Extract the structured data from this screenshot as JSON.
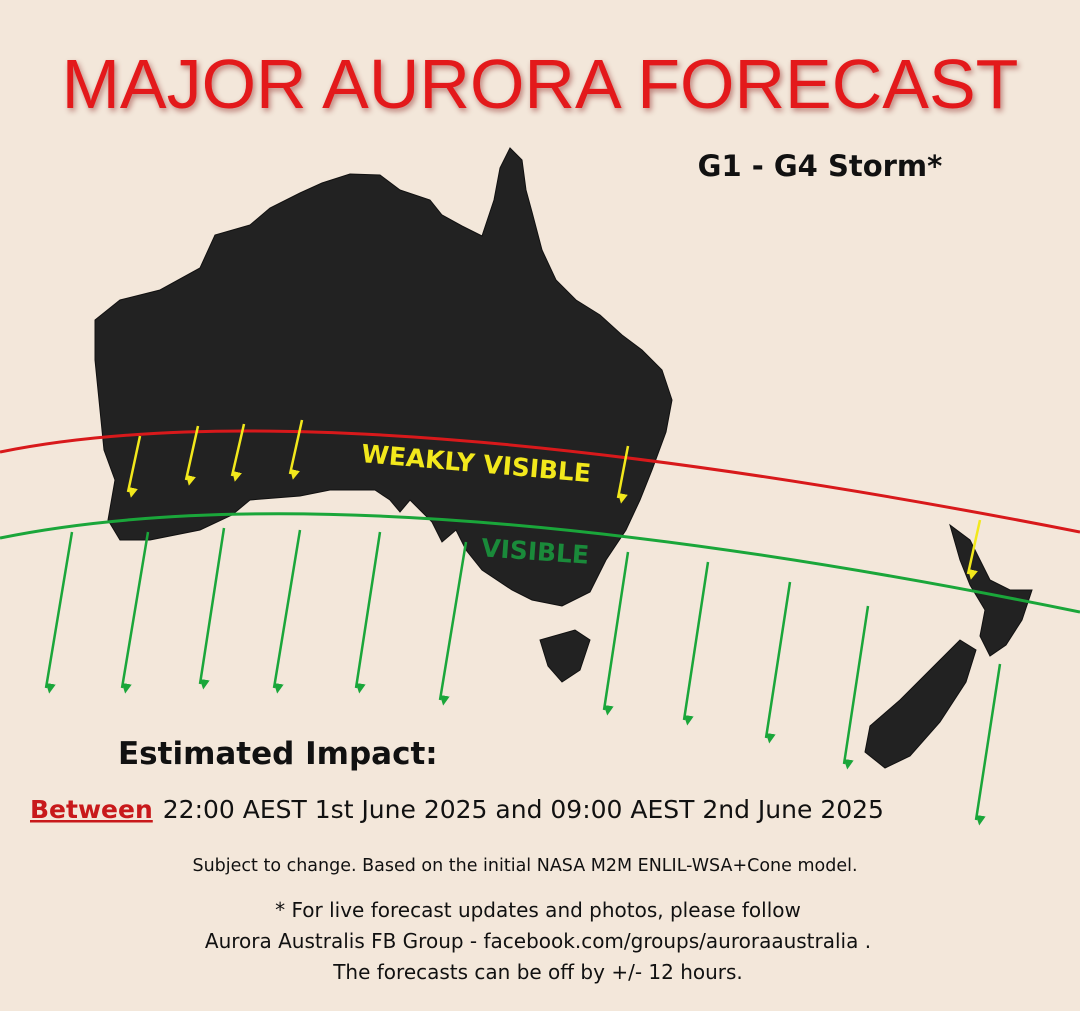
{
  "header": {
    "title": "MAJOR AURORA FORECAST",
    "subtitle": "G1 - G4 Storm*"
  },
  "map": {
    "zones": [
      {
        "label": "WEAKLY VISIBLE"
      },
      {
        "label": "VISIBLE"
      }
    ]
  },
  "impact": {
    "heading": "Estimated Impact:",
    "between": "Between",
    "window": "22:00 AEST 1st June 2025 and 09:00 AEST 2nd June 2025"
  },
  "notes": {
    "disclaimer": "Subject to change. Based on the initial NASA M2M ENLIL-WSA+Cone model.",
    "footnote": [
      "* For live forecast updates and photos, please follow",
      "Aurora Australis FB Group - facebook.com/groups/auroraaustralia .",
      "The forecasts can be off by +/- 12 hours."
    ]
  }
}
